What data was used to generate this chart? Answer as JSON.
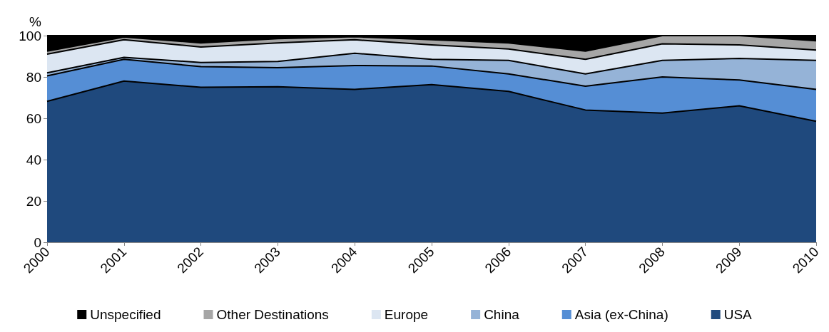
{
  "chart_data": {
    "type": "area",
    "stacked": true,
    "ylabel": "%",
    "categories": [
      "2000",
      "2001",
      "2002",
      "2003",
      "2004",
      "2005",
      "2006",
      "2007",
      "2008",
      "2009",
      "2010"
    ],
    "series": [
      {
        "name": "USA",
        "color": "#1f497d",
        "values": [
          68.2,
          78,
          75,
          75.3,
          74,
          76.3,
          73,
          64,
          62.5,
          66,
          58.5
        ]
      },
      {
        "name": "Asia (ex-China)",
        "color": "#558ed5",
        "values": [
          12.3,
          10.5,
          10,
          9.2,
          11.5,
          9,
          8.5,
          11.5,
          17.5,
          12.5,
          15.5
        ]
      },
      {
        "name": "China",
        "color": "#95b3d7",
        "values": [
          1.5,
          1,
          2,
          3,
          6,
          3.2,
          6.5,
          6,
          8,
          10.5,
          14
        ]
      },
      {
        "name": "Europe",
        "color": "#dce6f2",
        "values": [
          9,
          8.5,
          7.5,
          9,
          6.5,
          7,
          5.5,
          7,
          8,
          6.5,
          5
        ]
      },
      {
        "name": "Other Destinations",
        "color": "#a6a6a6",
        "values": [
          1.5,
          1.3,
          2,
          2,
          1.5,
          2.5,
          3,
          4,
          4,
          4.5,
          4.5
        ]
      },
      {
        "name": "Unspecified",
        "color": "#000000",
        "values": [
          7.5,
          0.7,
          3.5,
          1.5,
          0.5,
          2,
          3.5,
          7.5,
          0,
          0,
          2.5
        ]
      }
    ],
    "ylim": [
      0,
      100
    ],
    "yticks": [
      0,
      20,
      40,
      60,
      80,
      100
    ],
    "grid": false,
    "legend": "bottom"
  }
}
